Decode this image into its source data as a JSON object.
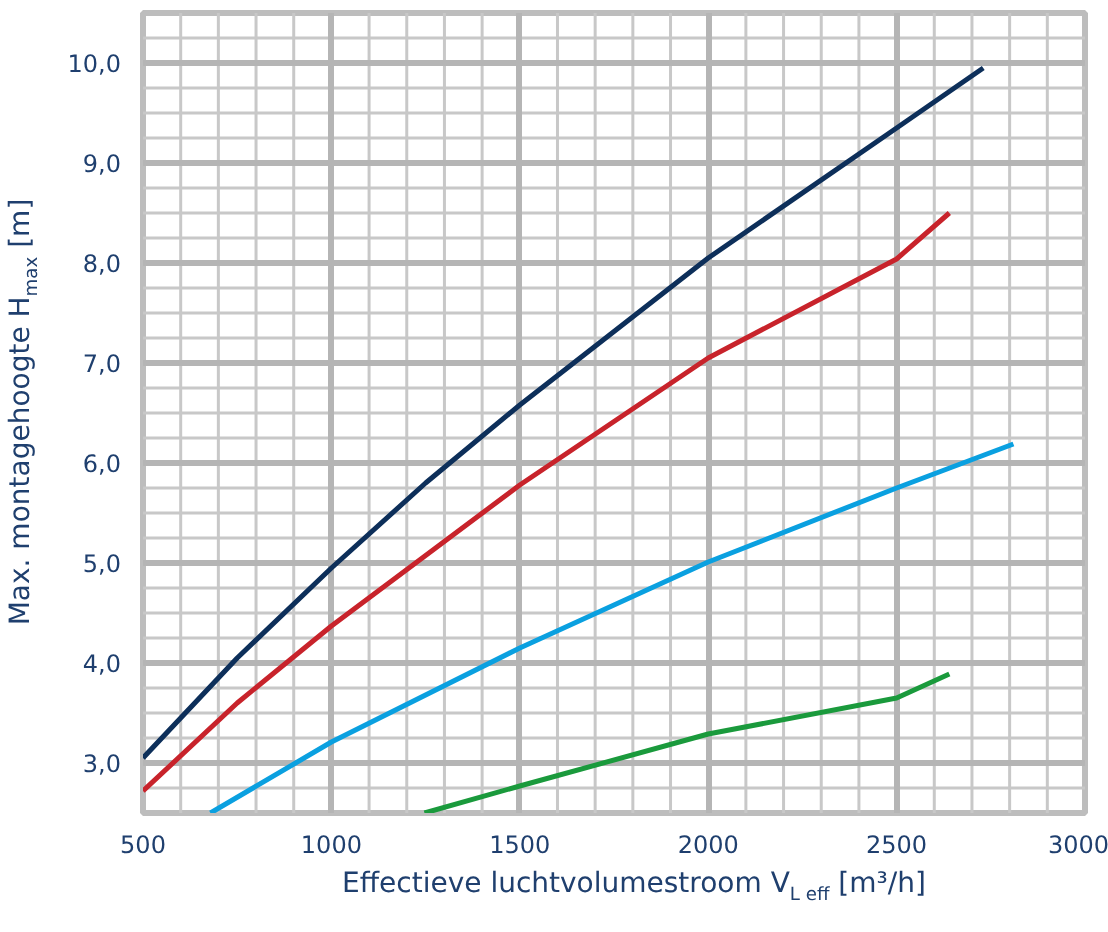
{
  "chart_data": {
    "type": "line",
    "xlabel": "Effectieve luchtvolumestroom V$_{L eff}$ [m³/h]",
    "ylabel": "Max. montagehoogte H$_{max}$ [m]",
    "xlim": [
      500,
      3000
    ],
    "ylim": [
      2.5,
      10.5
    ],
    "xticks": [
      500,
      {
        "value": 600,
        "label": null
      },
      {
        "value": 700,
        "label": null
      },
      {
        "value": 800,
        "label": null
      },
      {
        "value": 900,
        "label": null
      },
      1000,
      {
        "value": 1100,
        "label": null
      },
      {
        "value": 1200,
        "label": null
      },
      {
        "value": 1300,
        "label": null
      },
      {
        "value": 1400,
        "label": null
      },
      1500,
      {
        "value": 1600,
        "label": null
      },
      {
        "value": 1700,
        "label": null
      },
      {
        "value": 1800,
        "label": null
      },
      {
        "value": 1900,
        "label": null
      },
      2000,
      {
        "value": 2100,
        "label": null
      },
      {
        "value": 2200,
        "label": null
      },
      {
        "value": 2300,
        "label": null
      },
      {
        "value": 2400,
        "label": null
      },
      2500,
      {
        "value": 2600,
        "label": null
      },
      {
        "value": 2700,
        "label": null
      },
      {
        "value": 2800,
        "label": null
      },
      {
        "value": 2900,
        "label": null
      },
      3000
    ],
    "yticks": [
      {
        "value": 2.75,
        "label": null
      },
      {
        "value": 3,
        "label": "3,0"
      },
      {
        "value": 3.25,
        "label": null
      },
      {
        "value": 3.5,
        "label": null
      },
      {
        "value": 3.75,
        "label": null
      },
      {
        "value": 4,
        "label": "4,0"
      },
      {
        "value": 4.25,
        "label": null
      },
      {
        "value": 4.5,
        "label": null
      },
      {
        "value": 4.75,
        "label": null
      },
      {
        "value": 5,
        "label": "5,0"
      },
      {
        "value": 5.25,
        "label": null
      },
      {
        "value": 5.5,
        "label": null
      },
      {
        "value": 5.75,
        "label": null
      },
      {
        "value": 6,
        "label": "6,0"
      },
      {
        "value": 6.25,
        "label": null
      },
      {
        "value": 6.5,
        "label": null
      },
      {
        "value": 6.75,
        "label": null
      },
      {
        "value": 7,
        "label": "7,0"
      },
      {
        "value": 7.25,
        "label": null
      },
      {
        "value": 7.5,
        "label": null
      },
      {
        "value": 7.75,
        "label": null
      },
      {
        "value": 8,
        "label": "8,0"
      },
      {
        "value": 8.25,
        "label": null
      },
      {
        "value": 8.5,
        "label": null
      },
      {
        "value": 8.75,
        "label": null
      },
      {
        "value": 9,
        "label": "9,0"
      },
      {
        "value": 9.25,
        "label": null
      },
      {
        "value": 9.5,
        "label": null
      },
      {
        "value": 9.75,
        "label": null
      },
      {
        "value": 10,
        "label": "10,0"
      },
      {
        "value": 10.25,
        "label": null
      }
    ],
    "grid": true,
    "marker": "none",
    "line_style": "solid",
    "series": [
      {
        "color": "#0d2f5a",
        "x": [
          500,
          750,
          1000,
          1250,
          1500,
          2000,
          2500,
          2730
        ],
        "values": [
          3.05,
          4.05,
          4.95,
          5.8,
          6.58,
          8.05,
          9.35,
          9.95
        ]
      },
      {
        "color": "#c8232b",
        "x": [
          500,
          750,
          1000,
          1500,
          2000,
          2500,
          2640
        ],
        "values": [
          2.72,
          3.6,
          4.37,
          5.78,
          7.05,
          8.04,
          8.5
        ]
      },
      {
        "color": "#0aa0e0",
        "x": [
          679,
          1000,
          1500,
          2000,
          2500,
          2810
        ],
        "values": [
          2.5,
          3.21,
          4.15,
          5.01,
          5.75,
          6.19
        ]
      },
      {
        "color": "#1a9a3c",
        "x": [
          1247,
          1500,
          2000,
          2500,
          2640
        ],
        "values": [
          2.5,
          2.77,
          3.29,
          3.65,
          3.89
        ]
      }
    ]
  }
}
